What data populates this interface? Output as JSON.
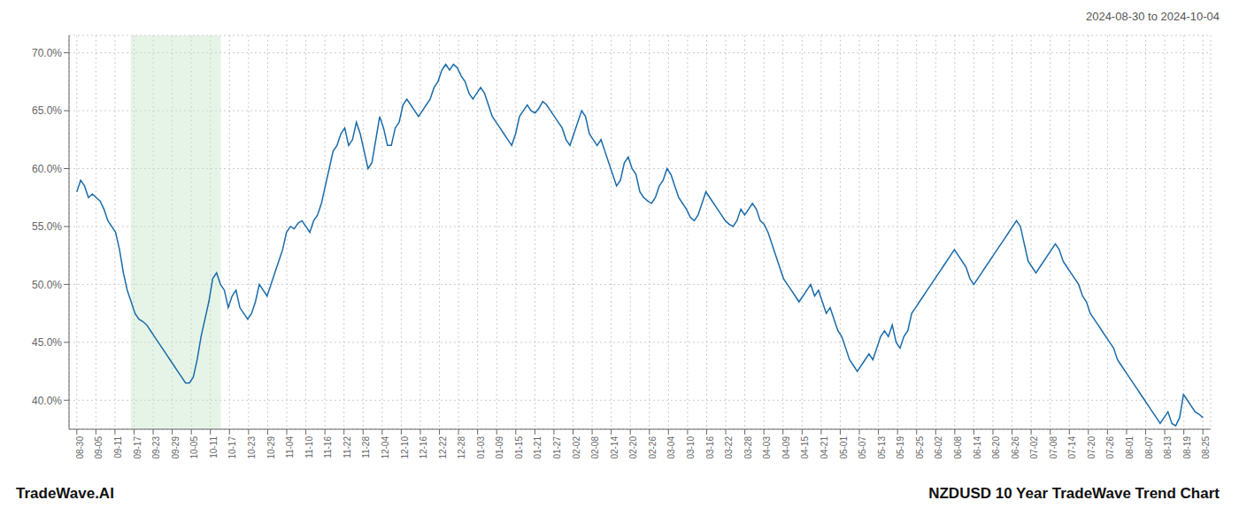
{
  "chart_data": {
    "type": "line",
    "title": "NZDUSD 10 Year TradeWave Trend Chart",
    "subtitle": "2024-08-30 to 2024-10-04",
    "annotations": [
      "TradeWave.AI"
    ],
    "color": "#1a6baa",
    "grid": true,
    "ylim": [
      37.5,
      71.5
    ],
    "yticks": [
      {
        "value": 40.0,
        "label": "40.0%"
      },
      {
        "value": 45.0,
        "label": "45.0%"
      },
      {
        "value": 50.0,
        "label": "50.0%"
      },
      {
        "value": 55.0,
        "label": "55.0%"
      },
      {
        "value": 60.0,
        "label": "60.0%"
      },
      {
        "value": 65.0,
        "label": "65.0%"
      },
      {
        "value": 70.0,
        "label": "70.0%"
      }
    ],
    "xlim": [
      -2,
      292
    ],
    "xticks": [
      {
        "value": 0,
        "label": "08-30"
      },
      {
        "value": 4.915254,
        "label": "09-05"
      },
      {
        "value": 9.830508,
        "label": "09-11"
      },
      {
        "value": 14.745763,
        "label": "09-17"
      },
      {
        "value": 19.661017,
        "label": "09-23"
      },
      {
        "value": 24.576271,
        "label": "09-29"
      },
      {
        "value": 29.491525,
        "label": "10-05"
      },
      {
        "value": 34.40678,
        "label": "10-11"
      },
      {
        "value": 39.322034,
        "label": "10-17"
      },
      {
        "value": 44.237288,
        "label": "10-23"
      },
      {
        "value": 49.152542,
        "label": "10-29"
      },
      {
        "value": 54.067797,
        "label": "11-04"
      },
      {
        "value": 58.983051,
        "label": "11-10"
      },
      {
        "value": 63.898305,
        "label": "11-16"
      },
      {
        "value": 68.813559,
        "label": "11-22"
      },
      {
        "value": 73.728814,
        "label": "11-28"
      },
      {
        "value": 78.644068,
        "label": "12-04"
      },
      {
        "value": 83.559322,
        "label": "12-10"
      },
      {
        "value": 88.474576,
        "label": "12-16"
      },
      {
        "value": 93.389831,
        "label": "12-22"
      },
      {
        "value": 98.305085,
        "label": "12-28"
      },
      {
        "value": 103.220339,
        "label": "01-03"
      },
      {
        "value": 108.135593,
        "label": "01-09"
      },
      {
        "value": 113.050847,
        "label": "01-15"
      },
      {
        "value": 117.966102,
        "label": "01-21"
      },
      {
        "value": 122.881356,
        "label": "01-27"
      },
      {
        "value": 127.79661,
        "label": "02-02"
      },
      {
        "value": 132.711864,
        "label": "02-08"
      },
      {
        "value": 137.627119,
        "label": "02-14"
      },
      {
        "value": 142.542373,
        "label": "02-20"
      },
      {
        "value": 147.457627,
        "label": "02-26"
      },
      {
        "value": 152.372881,
        "label": "03-04"
      },
      {
        "value": 157.288136,
        "label": "03-10"
      },
      {
        "value": 162.20339,
        "label": "03-16"
      },
      {
        "value": 167.118644,
        "label": "03-22"
      },
      {
        "value": 172.033898,
        "label": "03-28"
      },
      {
        "value": 176.949153,
        "label": "04-03"
      },
      {
        "value": 181.864407,
        "label": "04-09"
      },
      {
        "value": 186.779661,
        "label": "04-15"
      },
      {
        "value": 191.694915,
        "label": "04-21"
      },
      {
        "value": 196.610169,
        "label": "05-01"
      },
      {
        "value": 201.525424,
        "label": "05-07"
      },
      {
        "value": 206.440678,
        "label": "05-13"
      },
      {
        "value": 211.355932,
        "label": "05-19"
      },
      {
        "value": 216.271186,
        "label": "05-25"
      },
      {
        "value": 221.186441,
        "label": "06-02"
      },
      {
        "value": 226.101695,
        "label": "06-08"
      },
      {
        "value": 231.016949,
        "label": "06-14"
      },
      {
        "value": 235.932203,
        "label": "06-20"
      },
      {
        "value": 240.847458,
        "label": "06-26"
      },
      {
        "value": 245.762712,
        "label": "07-02"
      },
      {
        "value": 250.677966,
        "label": "07-08"
      },
      {
        "value": 255.59322,
        "label": "07-14"
      },
      {
        "value": 260.508475,
        "label": "07-20"
      },
      {
        "value": 265.423729,
        "label": "07-26"
      },
      {
        "value": 270.338983,
        "label": "08-01"
      },
      {
        "value": 275.254237,
        "label": "08-07"
      },
      {
        "value": 280.169492,
        "label": "08-13"
      },
      {
        "value": 285.084746,
        "label": "08-19"
      },
      {
        "value": 290,
        "label": "08-25"
      }
    ],
    "shade": {
      "x": [
        13.92,
        37.12
      ],
      "color": "#c8e6c9"
    },
    "x": [
      0,
      1,
      2,
      3,
      4,
      5,
      6,
      7,
      8,
      9,
      10,
      11,
      12,
      13,
      14,
      15,
      16,
      17,
      18,
      19,
      20,
      21,
      22,
      23,
      24,
      25,
      26,
      27,
      28,
      29,
      30,
      31,
      32,
      33,
      34,
      35,
      36,
      37,
      38,
      39,
      40,
      41,
      42,
      43,
      44,
      45,
      46,
      47,
      48,
      49,
      50,
      51,
      52,
      53,
      54,
      55,
      56,
      57,
      58,
      59,
      60,
      61,
      62,
      63,
      64,
      65,
      66,
      67,
      68,
      69,
      70,
      71,
      72,
      73,
      74,
      75,
      76,
      77,
      78,
      79,
      80,
      81,
      82,
      83,
      84,
      85,
      86,
      87,
      88,
      89,
      90,
      91,
      92,
      93,
      94,
      95,
      96,
      97,
      98,
      99,
      100,
      101,
      102,
      103,
      104,
      105,
      106,
      107,
      108,
      109,
      110,
      111,
      112,
      113,
      114,
      115,
      116,
      117,
      118,
      119,
      120,
      121,
      122,
      123,
      124,
      125,
      126,
      127,
      128,
      129,
      130,
      131,
      132,
      133,
      134,
      135,
      136,
      137,
      138,
      139,
      140,
      141,
      142,
      143,
      144,
      145,
      146,
      147,
      148,
      149,
      150,
      151,
      152,
      153,
      154,
      155,
      156,
      157,
      158,
      159,
      160,
      161,
      162,
      163,
      164,
      165,
      166,
      167,
      168,
      169,
      170,
      171,
      172,
      173,
      174,
      175,
      176,
      177,
      178,
      179,
      180,
      181,
      182,
      183,
      184,
      185,
      186,
      187,
      188,
      189,
      190,
      191,
      192,
      193,
      194,
      195,
      196,
      197,
      198,
      199,
      200,
      201,
      202,
      203,
      204,
      205,
      206,
      207,
      208,
      209,
      210,
      211,
      212,
      213,
      214,
      215,
      216,
      217,
      218,
      219,
      220,
      221,
      222,
      223,
      224,
      225,
      226,
      227,
      228,
      229,
      230,
      231,
      232,
      233,
      234,
      235,
      236,
      237,
      238,
      239,
      240,
      241,
      242,
      243,
      244,
      245,
      246,
      247,
      248,
      249,
      250,
      251,
      252,
      253,
      254,
      255,
      256,
      257,
      258,
      259,
      260,
      261,
      262,
      263,
      264,
      265,
      266,
      267,
      268,
      269,
      270,
      271,
      272,
      273,
      274,
      275,
      276,
      277,
      278,
      279,
      280,
      281,
      282,
      283,
      284,
      285,
      286,
      287,
      288,
      289,
      290
    ],
    "values": [
      58.0,
      59.0,
      58.5,
      57.5,
      57.8,
      57.5,
      57.2,
      56.5,
      55.5,
      55.0,
      54.5,
      53.0,
      51.0,
      49.5,
      48.5,
      47.5,
      47.0,
      46.8,
      46.5,
      46.0,
      45.5,
      45.0,
      44.5,
      44.0,
      43.5,
      43.0,
      42.5,
      42.0,
      41.5,
      41.5,
      42.0,
      43.5,
      45.5,
      47.0,
      48.5,
      50.5,
      51.0,
      50.0,
      49.5,
      48.0,
      49.0,
      49.5,
      48.0,
      47.5,
      47.0,
      47.5,
      48.5,
      50.0,
      49.5,
      49.0,
      50.0,
      51.0,
      52.0,
      53.0,
      54.5,
      55.0,
      54.8,
      55.3,
      55.5,
      55.0,
      54.5,
      55.5,
      56.0,
      57.0,
      58.5,
      60.0,
      61.5,
      62.0,
      63.0,
      63.5,
      62.0,
      62.5,
      64.0,
      63.0,
      61.5,
      60.0,
      60.5,
      62.5,
      64.5,
      63.5,
      62.0,
      62.0,
      63.5,
      64.0,
      65.5,
      66.0,
      65.5,
      65.0,
      64.5,
      65.0,
      65.5,
      66.0,
      67.0,
      67.5,
      68.5,
      69.0,
      68.5,
      69.0,
      68.7,
      68.0,
      67.5,
      66.5,
      66.0,
      66.5,
      67.0,
      66.5,
      65.5,
      64.5,
      64.0,
      63.5,
      63.0,
      62.5,
      62.0,
      63.0,
      64.5,
      65.0,
      65.5,
      65.0,
      64.8,
      65.2,
      65.8,
      65.5,
      65.0,
      64.5,
      64.0,
      63.5,
      62.5,
      62.0,
      63.0,
      64.0,
      65.0,
      64.5,
      63.0,
      62.5,
      62.0,
      62.5,
      61.5,
      60.5,
      59.5,
      58.5,
      59.0,
      60.5,
      61.0,
      60.0,
      59.5,
      58.0,
      57.5,
      57.2,
      57.0,
      57.5,
      58.5,
      59.0,
      60.0,
      59.5,
      58.5,
      57.5,
      57.0,
      56.5,
      55.8,
      55.5,
      56.0,
      57.0,
      58.0,
      57.5,
      57.0,
      56.5,
      56.0,
      55.5,
      55.2,
      55.0,
      55.5,
      56.5,
      56.0,
      56.5,
      57.0,
      56.5,
      55.5,
      55.2,
      54.5,
      53.5,
      52.5,
      51.5,
      50.5,
      50.0,
      49.5,
      49.0,
      48.5,
      49.0,
      49.5,
      50.0,
      49.0,
      49.5,
      48.5,
      47.5,
      48.0,
      47.0,
      46.0,
      45.5,
      44.5,
      43.5,
      43.0,
      42.5,
      43.0,
      43.5,
      44.0,
      43.5,
      44.5,
      45.5,
      46.0,
      45.5,
      46.5,
      45.0,
      44.5,
      45.5,
      46.0,
      47.5,
      48.0,
      48.5,
      49.0,
      49.5,
      50.0,
      50.5,
      51.0,
      51.5,
      52.0,
      52.5,
      53.0,
      52.5,
      52.0,
      51.5,
      50.5,
      50.0,
      50.5,
      51.0,
      51.5,
      52.0,
      52.5,
      53.0,
      53.5,
      54.0,
      54.5,
      55.0,
      55.5,
      55.0,
      53.5,
      52.0,
      51.5,
      51.0,
      51.5,
      52.0,
      52.5,
      53.0,
      53.5,
      53.0,
      52.0,
      51.5,
      51.0,
      50.5,
      50.0,
      49.0,
      48.5,
      47.5,
      47.0,
      46.5,
      46.0,
      45.5,
      45.0,
      44.5,
      43.5,
      43.0,
      42.5,
      42.0,
      41.5,
      41.0,
      40.5,
      40.0,
      39.5,
      39.0,
      38.5,
      38.0,
      38.5,
      39.0,
      38.0,
      37.8,
      38.5,
      40.5,
      40.0,
      39.5,
      39.0,
      38.8,
      38.5
    ]
  }
}
